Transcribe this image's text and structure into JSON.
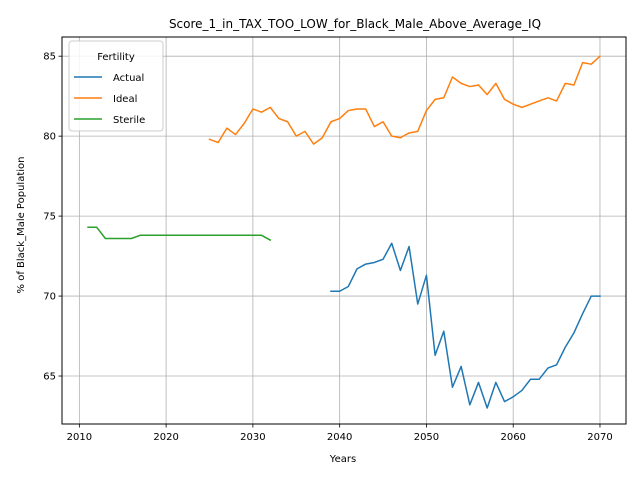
{
  "chart_data": {
    "type": "line",
    "title": "Score_1_in_TAX_TOO_LOW_for_Black_Male_Above_Average_IQ",
    "xlabel": "Years",
    "ylabel": "% of Black_Male Population",
    "xlim": [
      2008,
      2073
    ],
    "ylim": [
      62,
      86.2
    ],
    "xticks": [
      2010,
      2020,
      2030,
      2040,
      2050,
      2060,
      2070
    ],
    "yticks": [
      65,
      70,
      75,
      80,
      85
    ],
    "grid": true,
    "legend": {
      "title": "Fertility",
      "placement": "top-left"
    },
    "series": [
      {
        "name": "Actual",
        "color": "#1f77b4",
        "x": [
          2039,
          2040,
          2041,
          2042,
          2043,
          2044,
          2045,
          2046,
          2047,
          2048,
          2049,
          2050,
          2051,
          2052,
          2053,
          2054,
          2055,
          2056,
          2057,
          2058,
          2059,
          2060,
          2061,
          2062,
          2063,
          2064,
          2065,
          2066,
          2067,
          2068,
          2069,
          2070
        ],
        "y": [
          70.3,
          70.3,
          70.6,
          71.7,
          72.0,
          72.1,
          72.3,
          73.3,
          71.6,
          73.1,
          69.5,
          71.3,
          66.3,
          67.8,
          64.3,
          65.6,
          63.2,
          64.6,
          63.0,
          64.6,
          63.4,
          63.7,
          64.1,
          64.8,
          64.8,
          65.5,
          65.7,
          66.8,
          67.7,
          68.9,
          70.0,
          70.0
        ]
      },
      {
        "name": "Ideal",
        "color": "#ff7f0e",
        "x": [
          2025,
          2026,
          2027,
          2028,
          2029,
          2030,
          2031,
          2032,
          2033,
          2034,
          2035,
          2036,
          2037,
          2038,
          2039,
          2040,
          2041,
          2042,
          2043,
          2044,
          2045,
          2046,
          2047,
          2048,
          2049,
          2050,
          2051,
          2052,
          2053,
          2054,
          2055,
          2056,
          2057,
          2058,
          2059,
          2060,
          2061,
          2062,
          2063,
          2064,
          2065,
          2066,
          2067,
          2068,
          2069,
          2070
        ],
        "y": [
          79.8,
          79.6,
          80.5,
          80.1,
          80.8,
          81.7,
          81.5,
          81.8,
          81.1,
          80.9,
          80.0,
          80.3,
          79.5,
          79.9,
          80.9,
          81.1,
          81.6,
          81.7,
          81.7,
          80.6,
          80.9,
          80.0,
          79.9,
          80.2,
          80.3,
          81.6,
          82.3,
          82.4,
          83.7,
          83.3,
          83.1,
          83.2,
          82.6,
          83.3,
          82.3,
          82.0,
          81.8,
          82.0,
          82.2,
          82.4,
          82.2,
          83.3,
          83.2,
          84.6,
          84.5,
          85.0
        ]
      },
      {
        "name": "Sterile",
        "color": "#2ca02c",
        "x": [
          2011,
          2012,
          2013,
          2014,
          2015,
          2016,
          2017,
          2018,
          2019,
          2020,
          2021,
          2022,
          2023,
          2024,
          2025,
          2026,
          2027,
          2028,
          2029,
          2030,
          2031,
          2032
        ],
        "y": [
          74.3,
          74.3,
          73.6,
          73.6,
          73.6,
          73.6,
          73.8,
          73.8,
          73.8,
          73.8,
          73.8,
          73.8,
          73.8,
          73.8,
          73.8,
          73.8,
          73.8,
          73.8,
          73.8,
          73.8,
          73.8,
          73.5
        ]
      }
    ]
  }
}
